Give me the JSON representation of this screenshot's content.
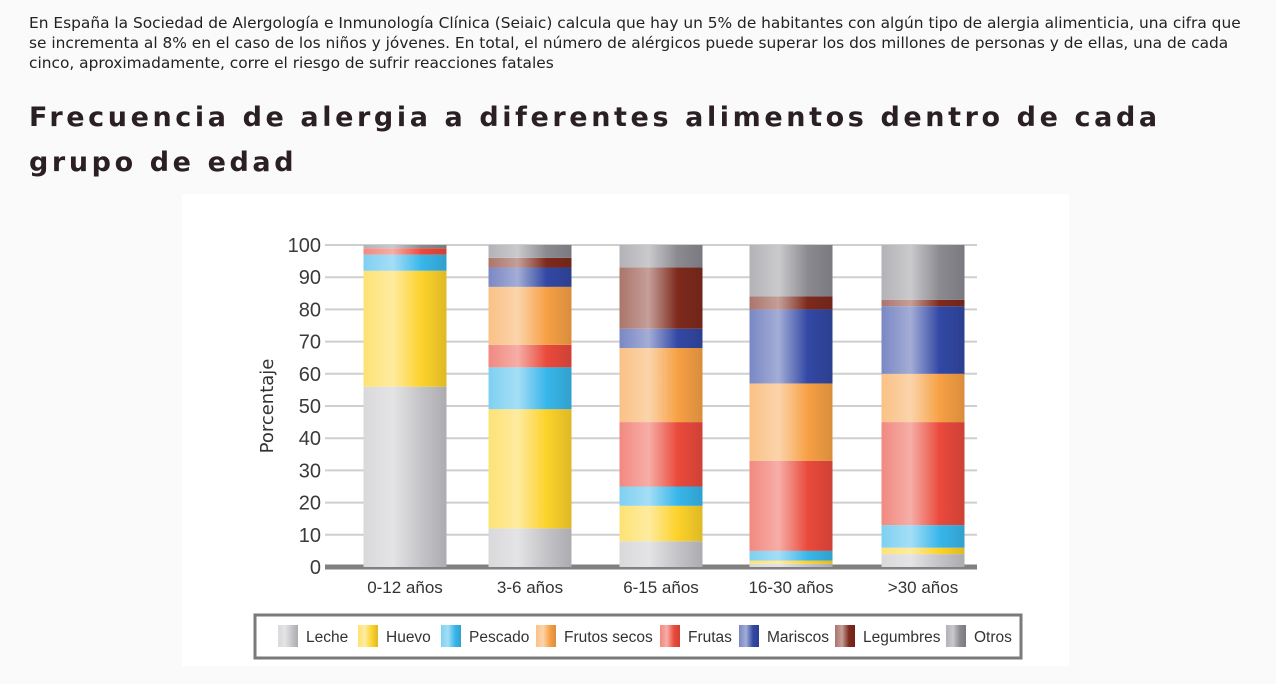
{
  "intro_text": "En España la Sociedad de Alergología e Inmunología Clínica (Seiaic) calcula que hay un 5% de habitantes con algún tipo de alergia alimenticia, una cifra que se incrementa al 8% en el caso de los niños y jóvenes. En total, el número de alérgicos puede superar los dos millones de personas y de ellas, una de cada cinco, aproximadamente, corre el riesgo de sufrir reacciones fatales",
  "heading": "Frecuencia de alergia a diferentes alimentos dentro de cada grupo de edad",
  "chart_data": {
    "type": "bar",
    "stacked": true,
    "ylabel": "Porcentaje",
    "ylim": [
      0,
      100
    ],
    "yticks": [
      0,
      10,
      20,
      30,
      40,
      50,
      60,
      70,
      80,
      90,
      100
    ],
    "grid": true,
    "legend_position": "bottom",
    "categories": [
      "0-12 años",
      "3-6 años",
      "6-15 años",
      "16-30 años",
      ">30 años"
    ],
    "series": [
      {
        "name": "Leche",
        "color": "#c4c4c8",
        "values": [
          56,
          12,
          8,
          1,
          4
        ]
      },
      {
        "name": "Huevo",
        "color": "#fcd22a",
        "values": [
          36,
          37,
          11,
          1,
          2
        ]
      },
      {
        "name": "Pescado",
        "color": "#38b6ea",
        "values": [
          5,
          13,
          6,
          3,
          7
        ]
      },
      {
        "name": "Frutos secos",
        "color": "#f7a044",
        "values": [
          0,
          0,
          0,
          0,
          0
        ]
      },
      {
        "name": "Frutas",
        "color": "#ea4a3c",
        "values": [
          2,
          7,
          20,
          28,
          32
        ]
      },
      {
        "name": "Frutos secos",
        "color": "#f7a044",
        "values": [
          0,
          18,
          23,
          24,
          15
        ]
      },
      {
        "name": "Mariscos",
        "color": "#3248a4",
        "values": [
          0,
          6,
          6,
          23,
          21
        ]
      },
      {
        "name": "Legumbres",
        "color": "#7e2a1c",
        "values": [
          0,
          3,
          19,
          4,
          2
        ]
      },
      {
        "name": "Otros",
        "color": "#8a8a90",
        "values": [
          1,
          4,
          7,
          16,
          17
        ]
      }
    ],
    "legend": [
      {
        "name": "Leche",
        "color": "#c4c4c8"
      },
      {
        "name": "Huevo",
        "color": "#fcd22a"
      },
      {
        "name": "Pescado",
        "color": "#38b6ea"
      },
      {
        "name": "Frutos secos",
        "color": "#f7a044"
      },
      {
        "name": "Frutas",
        "color": "#ea4a3c"
      },
      {
        "name": "Mariscos",
        "color": "#3248a4"
      },
      {
        "name": "Legumbres",
        "color": "#7e2a1c"
      },
      {
        "name": "Otros",
        "color": "#8a8a90"
      }
    ]
  }
}
